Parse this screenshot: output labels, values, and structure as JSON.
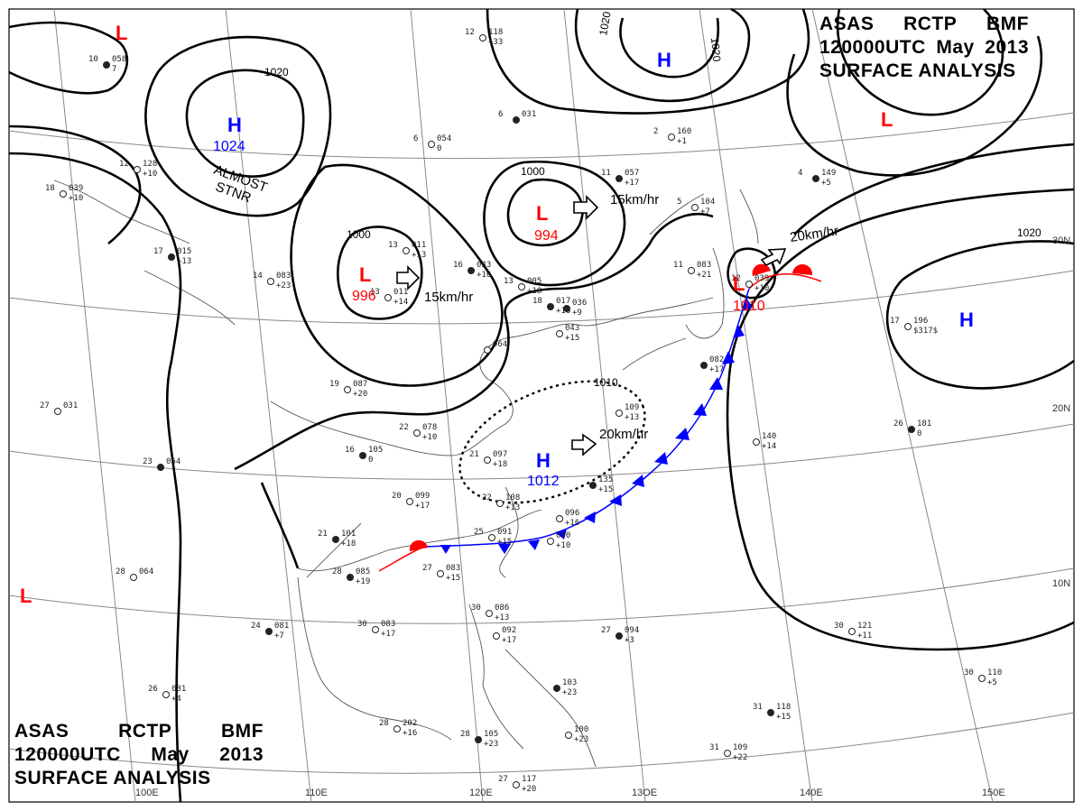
{
  "header": {
    "agency": "ASAS",
    "station": "RCTP",
    "unit": "BMF",
    "time": "120000UTC",
    "month": "May",
    "year": "2013",
    "product": "SURFACE ANALYSIS"
  },
  "longitude_labels": [
    "100E",
    "110E",
    "120E",
    "13OE",
    "140E",
    "150E"
  ],
  "latitude_labels": [
    "30N",
    "20N",
    "10N"
  ],
  "isobar_labels": [
    "1020",
    "1000",
    "1000",
    "1010",
    "1020",
    "1020",
    "1020"
  ],
  "pressure_systems": [
    {
      "type": "L",
      "color": "#ff0000",
      "value": ""
    },
    {
      "type": "L",
      "color": "#ff0000",
      "value": ""
    },
    {
      "type": "L",
      "color": "#ff0000",
      "value": ""
    },
    {
      "type": "H",
      "color": "#0000ff",
      "value": "1024",
      "note": "ALMOST STNR"
    },
    {
      "type": "H",
      "color": "#0000ff",
      "value": ""
    },
    {
      "type": "L",
      "color": "#ff0000",
      "value": "996"
    },
    {
      "type": "L",
      "color": "#ff0000",
      "value": "994"
    },
    {
      "type": "H",
      "color": "#0000ff",
      "value": "1012"
    },
    {
      "type": "L",
      "color": "#ff0000",
      "value": "1010"
    },
    {
      "type": "H",
      "color": "#0000ff",
      "value": ""
    }
  ],
  "motion_labels": [
    "15km/hr",
    "15km/hr",
    "20km/hr",
    "20km/hr"
  ],
  "colors": {
    "low": "#ff0000",
    "high": "#0000ff",
    "warm_front": "#ff0000",
    "stationary_front_cold": "#0000ff",
    "isobar": "#000000",
    "grid": "#808080"
  },
  "stations": [
    {
      "a": "10",
      "b": "058",
      "c": "7"
    },
    {
      "a": "12",
      "b": "128",
      "c": "+10"
    },
    {
      "a": "18",
      "b": "039",
      "c": "+10"
    },
    {
      "a": "17",
      "b": "015",
      "c": "+13"
    },
    {
      "a": "14",
      "b": "083",
      "c": "+23"
    },
    {
      "a": "6",
      "b": "054",
      "c": "0"
    },
    {
      "a": "6",
      "b": "031",
      "c": ""
    },
    {
      "a": "12",
      "b": "118",
      "c": "+33"
    },
    {
      "a": "13",
      "b": "011",
      "c": "+13"
    },
    {
      "a": "16",
      "b": "033",
      "c": "+16"
    },
    {
      "a": "13",
      "b": "005",
      "c": "+18"
    },
    {
      "a": "13",
      "b": "011",
      "c": "+14"
    },
    {
      "a": "18",
      "b": "017",
      "c": "+16"
    },
    {
      "a": "19",
      "b": "087",
      "c": "+20"
    },
    {
      "a": "22",
      "b": "078",
      "c": "+10"
    },
    {
      "a": "16",
      "b": "105",
      "c": "0"
    },
    {
      "a": "21",
      "b": "097",
      "c": "+18"
    },
    {
      "a": "27",
      "b": "031",
      "c": ""
    },
    {
      "a": "23",
      "b": "064",
      "c": ""
    },
    {
      "a": "20",
      "b": "099",
      "c": "+17"
    },
    {
      "a": "22",
      "b": "108",
      "c": "+13"
    },
    {
      "a": "21",
      "b": "101",
      "c": "+18"
    },
    {
      "a": "25",
      "b": "091",
      "c": "+15"
    },
    {
      "a": "27",
      "b": "083",
      "c": "+15"
    },
    {
      "a": "28",
      "b": "085",
      "c": "+19"
    },
    {
      "a": "28",
      "b": "064",
      "c": ""
    },
    {
      "a": "30",
      "b": "083",
      "c": "+17"
    },
    {
      "a": "24",
      "b": "081",
      "c": "+7"
    },
    {
      "a": "26",
      "b": "081",
      "c": "+4"
    },
    {
      "a": "28",
      "b": "202",
      "c": "+16"
    },
    {
      "a": "28",
      "b": "105",
      "c": "+23"
    },
    {
      "a": "30",
      "b": "086",
      "c": "+13"
    },
    {
      "a": "",
      "b": "092",
      "c": "+17"
    },
    {
      "a": "",
      "b": "103",
      "c": "+23"
    },
    {
      "a": "",
      "b": "100",
      "c": "+23"
    },
    {
      "a": "27",
      "b": "117",
      "c": "+20"
    },
    {
      "a": "27",
      "b": "094",
      "c": "+3"
    },
    {
      "a": "",
      "b": "109",
      "c": "+13"
    },
    {
      "a": "",
      "b": "140",
      "c": "+14"
    },
    {
      "a": "26",
      "b": "181",
      "c": "0"
    },
    {
      "a": "17",
      "b": "196",
      "c": "$317$"
    },
    {
      "a": "30",
      "b": "121",
      "c": "+11"
    },
    {
      "a": "31",
      "b": "118",
      "c": "+15"
    },
    {
      "a": "31",
      "b": "109",
      "c": "+22"
    },
    {
      "a": "30",
      "b": "110",
      "c": "+5"
    },
    {
      "a": "11",
      "b": "057",
      "c": "+17"
    },
    {
      "a": "11",
      "b": "083",
      "c": "+21"
    },
    {
      "a": "12",
      "b": "039",
      "c": "+10"
    },
    {
      "a": "4",
      "b": "149",
      "c": "+5"
    },
    {
      "a": "2",
      "b": "160",
      "c": "+1"
    },
    {
      "a": "5",
      "b": "104",
      "c": "+7"
    },
    {
      "a": "",
      "b": "135",
      "c": "+15"
    },
    {
      "a": "",
      "b": "096",
      "c": "+16"
    },
    {
      "a": "",
      "b": "090",
      "c": "+10"
    },
    {
      "a": "",
      "b": "082",
      "c": "+17"
    },
    {
      "a": "",
      "b": "064",
      "c": ""
    },
    {
      "a": "",
      "b": "043",
      "c": "+15"
    },
    {
      "a": "",
      "b": "036",
      "c": "+9"
    }
  ]
}
